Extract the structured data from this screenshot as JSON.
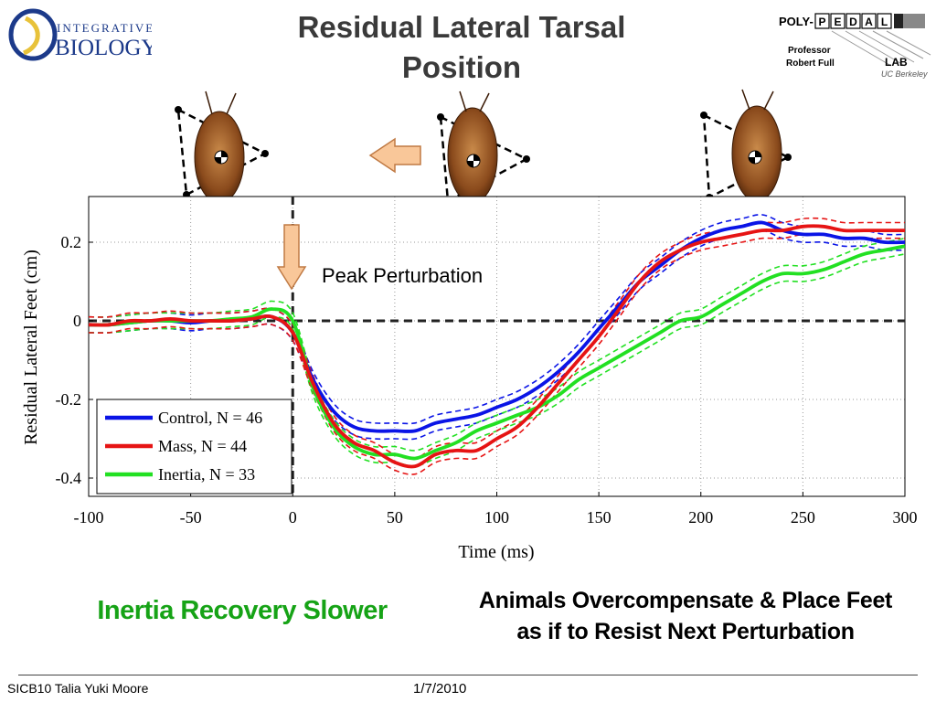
{
  "slide": {
    "title_line1": "Residual Lateral Tarsal",
    "title_line2": "Position",
    "annotation_peak": "Peak Perturbation",
    "note_left": "Inertia Recovery Slower",
    "note_right_line1": "Animals Overcompensate & Place Feet",
    "note_right_line2": "as if to Resist Next Perturbation",
    "footer_author": "SICB10 Talia Yuki Moore",
    "footer_date": "1/7/2010"
  },
  "logos": {
    "integrative_biology": {
      "top": "INTEGRATIVE",
      "bottom": "BIOLOGY"
    },
    "polypedal": {
      "prefix": "POLY-",
      "letters": [
        "P",
        "E",
        "D",
        "A",
        "L"
      ],
      "line1": "Professor",
      "line2": "Robert Full",
      "lab": "LAB",
      "sub": "UC Berkeley"
    }
  },
  "colors": {
    "control": "#0a14e6",
    "mass": "#e61414",
    "inertia": "#22e022",
    "arrow_fill": "#f9c799",
    "arrow_stroke": "#c07a44",
    "title": "#3a3a3a",
    "note_left": "#16a316"
  },
  "chart_data": {
    "type": "line",
    "title": "",
    "xlabel": "Time (ms)",
    "ylabel": "Residual Lateral Feet (cm)",
    "xlim": [
      -100,
      300
    ],
    "ylim": [
      -0.42,
      0.3
    ],
    "xticks": [
      -100,
      -50,
      0,
      50,
      100,
      150,
      200,
      250,
      300
    ],
    "yticks": [
      -0.4,
      -0.2,
      0,
      0.2
    ],
    "ytick_labels": [
      "-0.4",
      "-0.2",
      "0",
      "0.2"
    ],
    "grid": true,
    "legend_position": "bottom-left",
    "reference_lines": {
      "y": 0,
      "x": 0
    },
    "band": 0.02,
    "x": [
      -100,
      -90,
      -80,
      -70,
      -60,
      -50,
      -40,
      -30,
      -20,
      -10,
      0,
      10,
      20,
      30,
      40,
      50,
      60,
      70,
      80,
      90,
      100,
      110,
      120,
      130,
      140,
      150,
      160,
      170,
      180,
      190,
      200,
      210,
      220,
      230,
      240,
      250,
      260,
      270,
      280,
      290,
      300
    ],
    "series": [
      {
        "name": "Control, N = 46",
        "color": "#0a14e6",
        "values": [
          -0.01,
          -0.01,
          -0.005,
          0,
          0,
          -0.005,
          0,
          0,
          0.005,
          0.01,
          -0.03,
          -0.15,
          -0.23,
          -0.27,
          -0.28,
          -0.28,
          -0.28,
          -0.26,
          -0.25,
          -0.24,
          -0.22,
          -0.2,
          -0.17,
          -0.13,
          -0.08,
          -0.02,
          0.04,
          0.1,
          0.14,
          0.18,
          0.21,
          0.23,
          0.24,
          0.25,
          0.23,
          0.22,
          0.22,
          0.21,
          0.21,
          0.2,
          0.2
        ]
      },
      {
        "name": "Mass, N = 44",
        "color": "#e61414",
        "values": [
          -0.01,
          -0.01,
          0,
          0,
          0.005,
          0,
          0,
          0,
          0.005,
          0.01,
          -0.03,
          -0.16,
          -0.26,
          -0.31,
          -0.33,
          -0.36,
          -0.37,
          -0.34,
          -0.33,
          -0.33,
          -0.3,
          -0.27,
          -0.22,
          -0.16,
          -0.1,
          -0.04,
          0.03,
          0.1,
          0.15,
          0.18,
          0.2,
          0.21,
          0.22,
          0.23,
          0.23,
          0.24,
          0.24,
          0.23,
          0.23,
          0.23,
          0.23
        ]
      },
      {
        "name": "Inertia, N = 33",
        "color": "#22e022",
        "values": [
          -0.01,
          -0.01,
          -0.005,
          0,
          0,
          0,
          0,
          0.005,
          0.01,
          0.03,
          0,
          -0.17,
          -0.27,
          -0.32,
          -0.34,
          -0.34,
          -0.35,
          -0.33,
          -0.31,
          -0.28,
          -0.26,
          -0.24,
          -0.22,
          -0.19,
          -0.15,
          -0.12,
          -0.09,
          -0.06,
          -0.03,
          0,
          0.01,
          0.04,
          0.07,
          0.1,
          0.12,
          0.12,
          0.13,
          0.15,
          0.17,
          0.18,
          0.19
        ]
      }
    ]
  }
}
